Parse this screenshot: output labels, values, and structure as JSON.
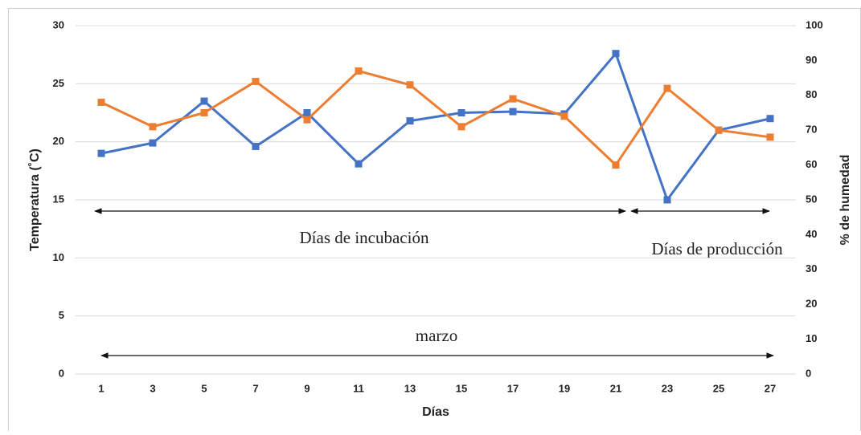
{
  "chart_data": {
    "type": "line",
    "x_label": "Días",
    "y_label": "Temperatura (˚C)",
    "y2_label": "% de humedad",
    "categories": [
      "1",
      "3",
      "5",
      "7",
      "9",
      "11",
      "13",
      "15",
      "17",
      "19",
      "21",
      "23",
      "25",
      "27"
    ],
    "series": [
      {
        "color": "#4472c4",
        "values": [
          19.0,
          19.9,
          23.5,
          19.6,
          22.5,
          18.1,
          21.8,
          22.5,
          22.6,
          22.4,
          27.6,
          15.0,
          21.0,
          22.0
        ]
      },
      {
        "color": "#ed7d31",
        "axis": "y2",
        "values": [
          78,
          71,
          75,
          84,
          73,
          87,
          83,
          71,
          79,
          74,
          60,
          82,
          70,
          68
        ]
      }
    ],
    "ylim": [
      0,
      30
    ],
    "yticks": [
      0,
      5,
      10,
      15,
      20,
      25,
      30
    ],
    "y2lim": [
      0,
      100
    ],
    "y2ticks": [
      0,
      10,
      20,
      30,
      40,
      50,
      60,
      70,
      80,
      90,
      100
    ],
    "grid": true,
    "annotations": [
      "Días de incubación",
      "Días de producción",
      "marzo"
    ]
  }
}
